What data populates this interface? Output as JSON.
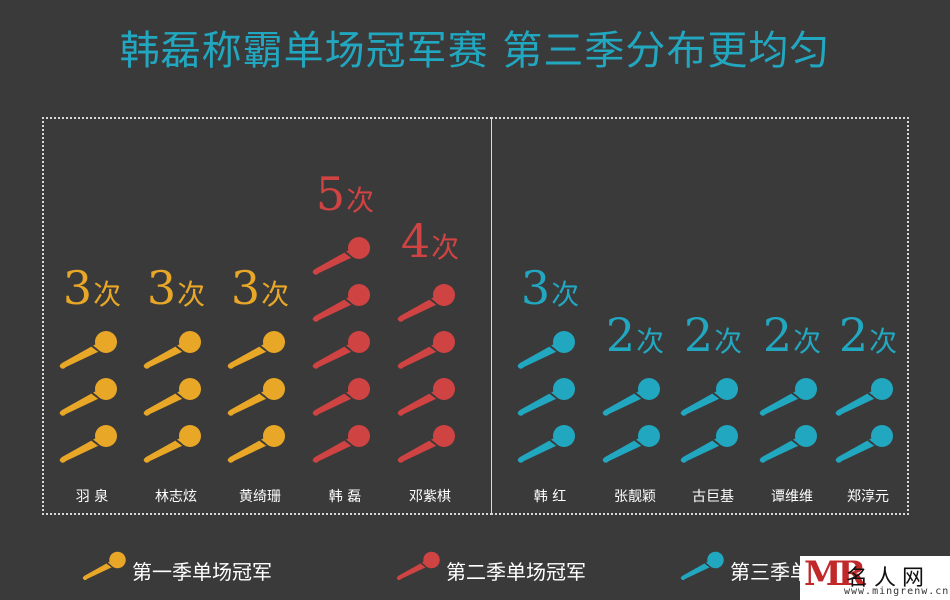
{
  "title": "韩磊称霸单场冠军赛 第三季分布更均匀",
  "colors": {
    "season1": "#e9a728",
    "season2": "#cf4343",
    "season3": "#22a7c0",
    "background": "#3a3a3a"
  },
  "chart_data": {
    "type": "bar",
    "unit": "次",
    "series": [
      {
        "name": "第一季单场冠军",
        "color": "#e9a728",
        "categories": [
          "羽 泉",
          "林志炫",
          "黄绮珊"
        ],
        "values": [
          3,
          3,
          3
        ]
      },
      {
        "name": "第二季单场冠军",
        "color": "#cf4343",
        "categories": [
          "韩 磊",
          "邓紫棋"
        ],
        "values": [
          5,
          4
        ]
      },
      {
        "name": "第三季单场冠军",
        "color": "#22a7c0",
        "categories": [
          "韩 红",
          "张靓颖",
          "古巨基",
          "谭维维",
          "郑淳元"
        ],
        "values": [
          3,
          2,
          2,
          2,
          2
        ]
      }
    ],
    "icon": "microphone-icon",
    "legend_position": "bottom"
  },
  "legend": [
    {
      "label": "第一季单场冠军",
      "color": "#e9a728"
    },
    {
      "label": "第二季单场冠军",
      "color": "#cf4343"
    },
    {
      "label": "第三季单场冠军",
      "color": "#22a7c0"
    }
  ],
  "watermark": {
    "logo": "MR",
    "name": "名人网",
    "url": "www.mingrenw.cn"
  }
}
